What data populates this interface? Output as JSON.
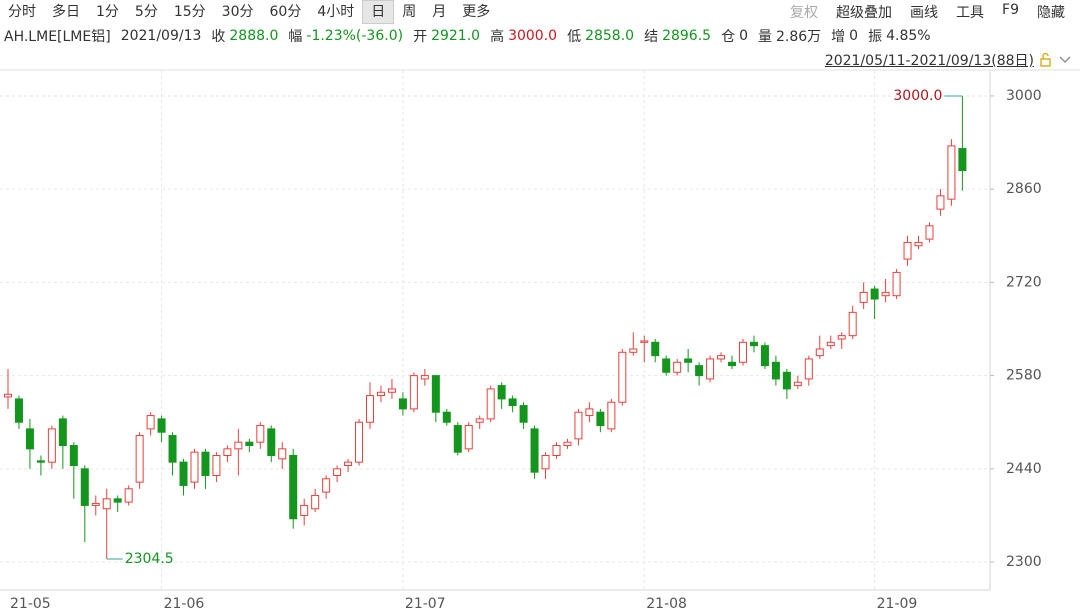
{
  "toolbar": {
    "tabs": [
      "分时",
      "多日",
      "1分",
      "5分",
      "15分",
      "30分",
      "60分",
      "4小时",
      "日",
      "周",
      "月",
      "更多"
    ],
    "tools": [
      "复权",
      "超级叠加",
      "画线",
      "工具",
      "F9",
      "隐藏"
    ]
  },
  "info": {
    "symbol": "AH.LME[LME铝]",
    "date": "2021/09/13",
    "items": [
      {
        "label": "收",
        "value": "2888.0"
      },
      {
        "label": "幅",
        "value": "-1.23%(-36.0)"
      },
      {
        "label": "开",
        "value": "2921.0"
      },
      {
        "label": "高",
        "value": "3000.0"
      },
      {
        "label": "低",
        "value": "2858.0"
      },
      {
        "label": "结",
        "value": "2896.5"
      },
      {
        "label": "仓",
        "value": "0"
      },
      {
        "label": "量",
        "value": "2.86万"
      },
      {
        "label": "增",
        "value": "0"
      },
      {
        "label": "振",
        "value": "4.85%"
      }
    ],
    "range": "2021/05/11-2021/09/13(88日)"
  },
  "chart_data": {
    "type": "candlestick",
    "categories": [
      "21-05",
      null,
      null,
      null,
      null,
      null,
      null,
      null,
      null,
      null,
      null,
      null,
      null,
      null,
      "21-06",
      null,
      null,
      null,
      null,
      null,
      null,
      null,
      null,
      null,
      null,
      null,
      null,
      null,
      null,
      null,
      null,
      null,
      null,
      null,
      null,
      null,
      "21-07",
      null,
      null,
      null,
      null,
      null,
      null,
      null,
      null,
      null,
      null,
      null,
      null,
      null,
      null,
      null,
      null,
      null,
      null,
      null,
      null,
      null,
      "21-08",
      null,
      null,
      null,
      null,
      null,
      null,
      null,
      null,
      null,
      null,
      null,
      null,
      null,
      null,
      null,
      null,
      null,
      null,
      null,
      null,
      "21-09",
      null,
      null,
      null,
      null,
      null,
      null,
      null,
      null
    ],
    "open": [
      2548,
      2545,
      2500,
      2452,
      2450,
      2515,
      2475,
      2440,
      2385,
      2380,
      2395,
      2390,
      2420,
      2500,
      2515,
      2490,
      2450,
      2420,
      2465,
      2430,
      2460,
      2470,
      2480,
      2480,
      2500,
      2455,
      2460,
      2370,
      2380,
      2405,
      2430,
      2445,
      2450,
      2510,
      2550,
      2555,
      2545,
      2530,
      2575,
      2580,
      2525,
      2505,
      2470,
      2510,
      2515,
      2565,
      2545,
      2535,
      2500,
      2440,
      2460,
      2475,
      2485,
      2520,
      2525,
      2500,
      2540,
      2615,
      2630,
      2630,
      2605,
      2585,
      2605,
      2595,
      2575,
      2605,
      2600,
      2600,
      2630,
      2625,
      2600,
      2585,
      2565,
      2575,
      2610,
      2625,
      2635,
      2640,
      2690,
      2710,
      2700,
      2700,
      2755,
      2775,
      2785,
      2830,
      2845,
      2921
    ],
    "high": [
      2590,
      2550,
      2515,
      2460,
      2505,
      2520,
      2480,
      2445,
      2400,
      2410,
      2400,
      2415,
      2495,
      2525,
      2520,
      2495,
      2455,
      2470,
      2470,
      2465,
      2475,
      2500,
      2485,
      2510,
      2505,
      2480,
      2470,
      2395,
      2410,
      2430,
      2445,
      2455,
      2515,
      2570,
      2565,
      2575,
      2555,
      2585,
      2590,
      2580,
      2530,
      2510,
      2510,
      2520,
      2565,
      2570,
      2550,
      2540,
      2505,
      2465,
      2480,
      2485,
      2530,
      2540,
      2530,
      2545,
      2620,
      2645,
      2640,
      2635,
      2610,
      2605,
      2620,
      2600,
      2610,
      2615,
      2610,
      2635,
      2640,
      2630,
      2610,
      2590,
      2580,
      2610,
      2640,
      2640,
      2645,
      2685,
      2720,
      2715,
      2725,
      2740,
      2790,
      2790,
      2810,
      2860,
      2935,
      3000
    ],
    "low": [
      2530,
      2500,
      2440,
      2430,
      2440,
      2440,
      2395,
      2330,
      2370,
      2304.5,
      2375,
      2385,
      2410,
      2490,
      2480,
      2430,
      2400,
      2410,
      2410,
      2420,
      2450,
      2430,
      2465,
      2470,
      2450,
      2440,
      2350,
      2355,
      2375,
      2395,
      2420,
      2435,
      2445,
      2500,
      2540,
      2545,
      2520,
      2525,
      2565,
      2510,
      2505,
      2460,
      2465,
      2500,
      2510,
      2530,
      2525,
      2500,
      2425,
      2425,
      2455,
      2470,
      2475,
      2510,
      2495,
      2495,
      2535,
      2610,
      2600,
      2600,
      2580,
      2580,
      2585,
      2565,
      2570,
      2600,
      2590,
      2595,
      2615,
      2590,
      2565,
      2545,
      2560,
      2565,
      2605,
      2620,
      2620,
      2635,
      2680,
      2665,
      2690,
      2695,
      2745,
      2770,
      2780,
      2820,
      2835,
      2858
    ],
    "close": [
      2552,
      2510,
      2470,
      2450,
      2500,
      2475,
      2445,
      2385,
      2388,
      2395,
      2390,
      2410,
      2490,
      2520,
      2495,
      2450,
      2415,
      2465,
      2430,
      2460,
      2470,
      2480,
      2475,
      2505,
      2460,
      2470,
      2365,
      2385,
      2400,
      2425,
      2440,
      2450,
      2510,
      2550,
      2555,
      2560,
      2530,
      2580,
      2580,
      2525,
      2510,
      2465,
      2505,
      2515,
      2560,
      2545,
      2535,
      2510,
      2435,
      2460,
      2475,
      2480,
      2525,
      2530,
      2505,
      2540,
      2615,
      2620,
      2632,
      2610,
      2585,
      2600,
      2600,
      2580,
      2605,
      2610,
      2595,
      2630,
      2625,
      2595,
      2575,
      2560,
      2570,
      2605,
      2620,
      2630,
      2640,
      2675,
      2705,
      2695,
      2705,
      2735,
      2780,
      2780,
      2805,
      2850,
      2925,
      2888
    ],
    "up_color": "#e8413c",
    "down_color": "#14961e",
    "ylim": [
      2258,
      3039
    ],
    "yticks": [
      2300,
      2440,
      2580,
      2720,
      2860,
      3000
    ],
    "grid": true,
    "annotations": [
      {
        "value": 3000,
        "label": "3000.0"
      },
      {
        "value": 2304.5,
        "label": "2304.5"
      }
    ]
  }
}
